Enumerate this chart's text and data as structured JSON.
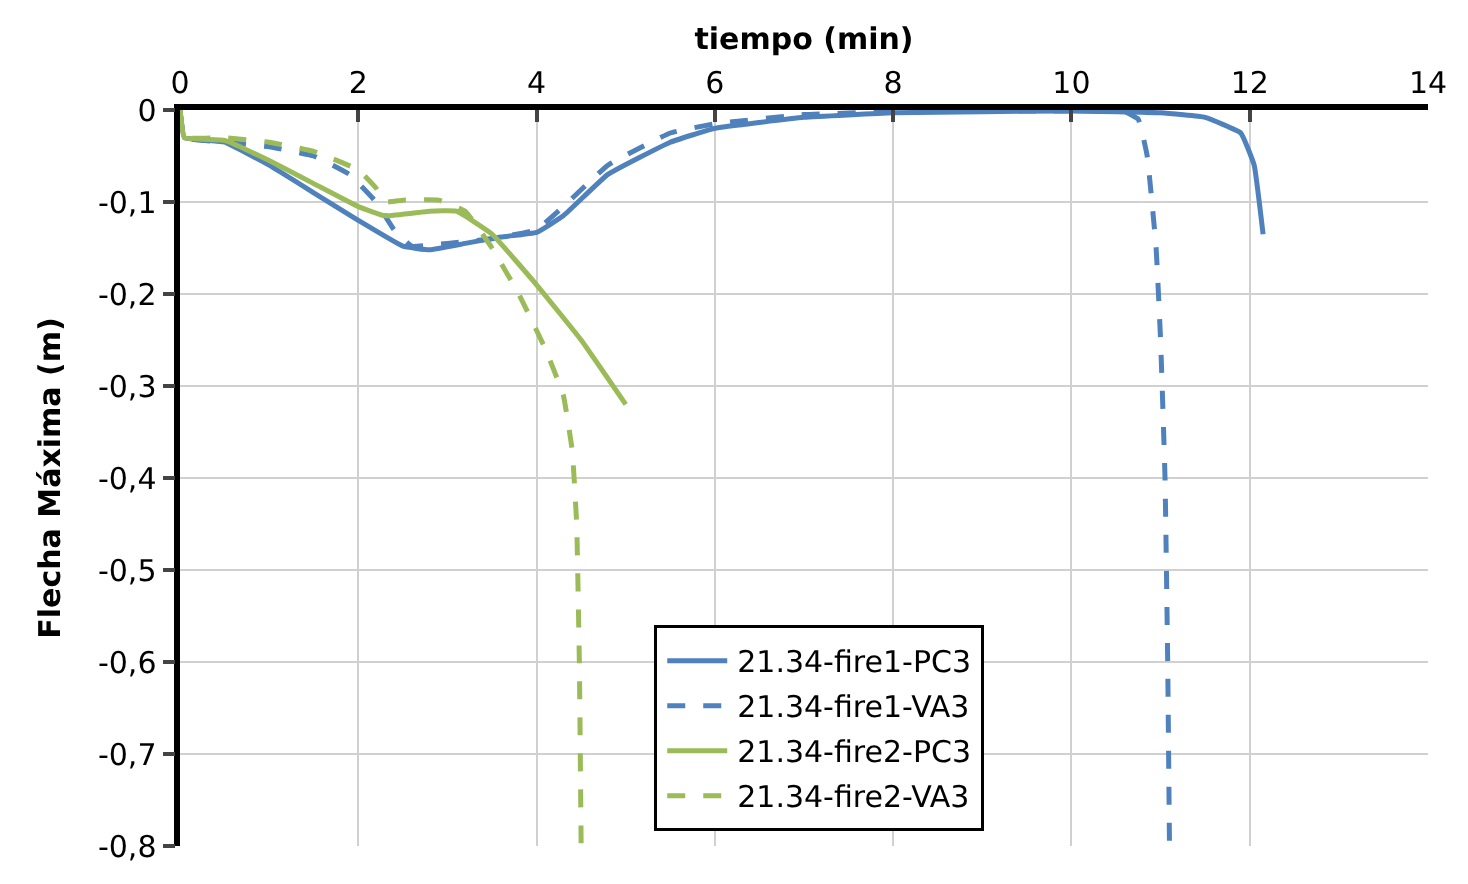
{
  "chart_data": {
    "type": "line",
    "xlabel": "tiempo (min)",
    "ylabel": "Flecha Máxima (m)",
    "xlim": [
      0,
      14
    ],
    "xticks": [
      0,
      2,
      4,
      6,
      8,
      10,
      12,
      14
    ],
    "ylim": [
      -0.8,
      0
    ],
    "yticks": [
      {
        "value": -0.8,
        "label": "-0,8"
      },
      {
        "value": -0.7,
        "label": "-0,7"
      },
      {
        "value": -0.6,
        "label": "-0,6"
      },
      {
        "value": -0.5,
        "label": "-0,5"
      },
      {
        "value": -0.4,
        "label": "-0,4"
      },
      {
        "value": -0.3,
        "label": "-0,3"
      },
      {
        "value": -0.2,
        "label": "-0,2"
      },
      {
        "value": -0.1,
        "label": "-0,1"
      },
      0
    ],
    "grid": true,
    "legend": "bottom",
    "marker": "none",
    "series": [
      {
        "name": "21.34-fire1-PC3",
        "color": "#4f81bd",
        "line_style": "solid",
        "x": [
          0,
          0.05,
          0.5,
          1,
          1.5,
          2,
          2.5,
          2.8,
          3.2,
          3.6,
          4,
          4.3,
          4.8,
          5.5,
          6,
          7,
          8,
          10,
          11,
          11.5,
          11.9,
          12.05,
          12.15
        ],
        "values": [
          0,
          -0.03,
          -0.035,
          -0.06,
          -0.09,
          -0.12,
          -0.148,
          -0.152,
          -0.145,
          -0.138,
          -0.133,
          -0.115,
          -0.07,
          -0.035,
          -0.02,
          -0.008,
          -0.003,
          -0.001,
          -0.003,
          -0.008,
          -0.025,
          -0.06,
          -0.135
        ]
      },
      {
        "name": "21.34-fire1-VA3",
        "color": "#4f81bd",
        "line_style": "dashed",
        "x": [
          0,
          0.05,
          0.5,
          1,
          1.5,
          1.9,
          2.2,
          2.4,
          2.6,
          3,
          3.5,
          4,
          4.3,
          4.8,
          5.5,
          6,
          7,
          8,
          10,
          10.6,
          10.75,
          10.85,
          10.95,
          11,
          11.05,
          11.08,
          11.1
        ],
        "values": [
          0,
          -0.03,
          -0.035,
          -0.04,
          -0.05,
          -0.07,
          -0.1,
          -0.13,
          -0.148,
          -0.145,
          -0.14,
          -0.13,
          -0.105,
          -0.06,
          -0.025,
          -0.015,
          -0.005,
          -0.002,
          -0.001,
          -0.002,
          -0.01,
          -0.05,
          -0.15,
          -0.25,
          -0.4,
          -0.6,
          -0.8
        ]
      },
      {
        "name": "21.34-fire2-PC3",
        "color": "#9bbb59",
        "line_style": "solid",
        "x": [
          0,
          0.05,
          0.5,
          1,
          1.5,
          2,
          2.3,
          2.8,
          3.1,
          3.5,
          4,
          4.5,
          5
        ],
        "values": [
          0,
          -0.03,
          -0.033,
          -0.055,
          -0.08,
          -0.105,
          -0.115,
          -0.11,
          -0.11,
          -0.135,
          -0.19,
          -0.25,
          -0.32
        ]
      },
      {
        "name": "21.34-fire2-VA3",
        "color": "#9bbb59",
        "line_style": "dashed",
        "x": [
          0,
          0.05,
          0.5,
          1,
          1.5,
          2,
          2.2,
          2.3,
          2.5,
          2.9,
          3.2,
          3.5,
          3.8,
          4.1,
          4.3,
          4.4,
          4.45,
          4.48,
          4.5
        ],
        "values": [
          0,
          -0.03,
          -0.03,
          -0.035,
          -0.045,
          -0.065,
          -0.085,
          -0.1,
          -0.098,
          -0.098,
          -0.11,
          -0.15,
          -0.2,
          -0.26,
          -0.31,
          -0.37,
          -0.45,
          -0.6,
          -0.8
        ]
      }
    ]
  }
}
